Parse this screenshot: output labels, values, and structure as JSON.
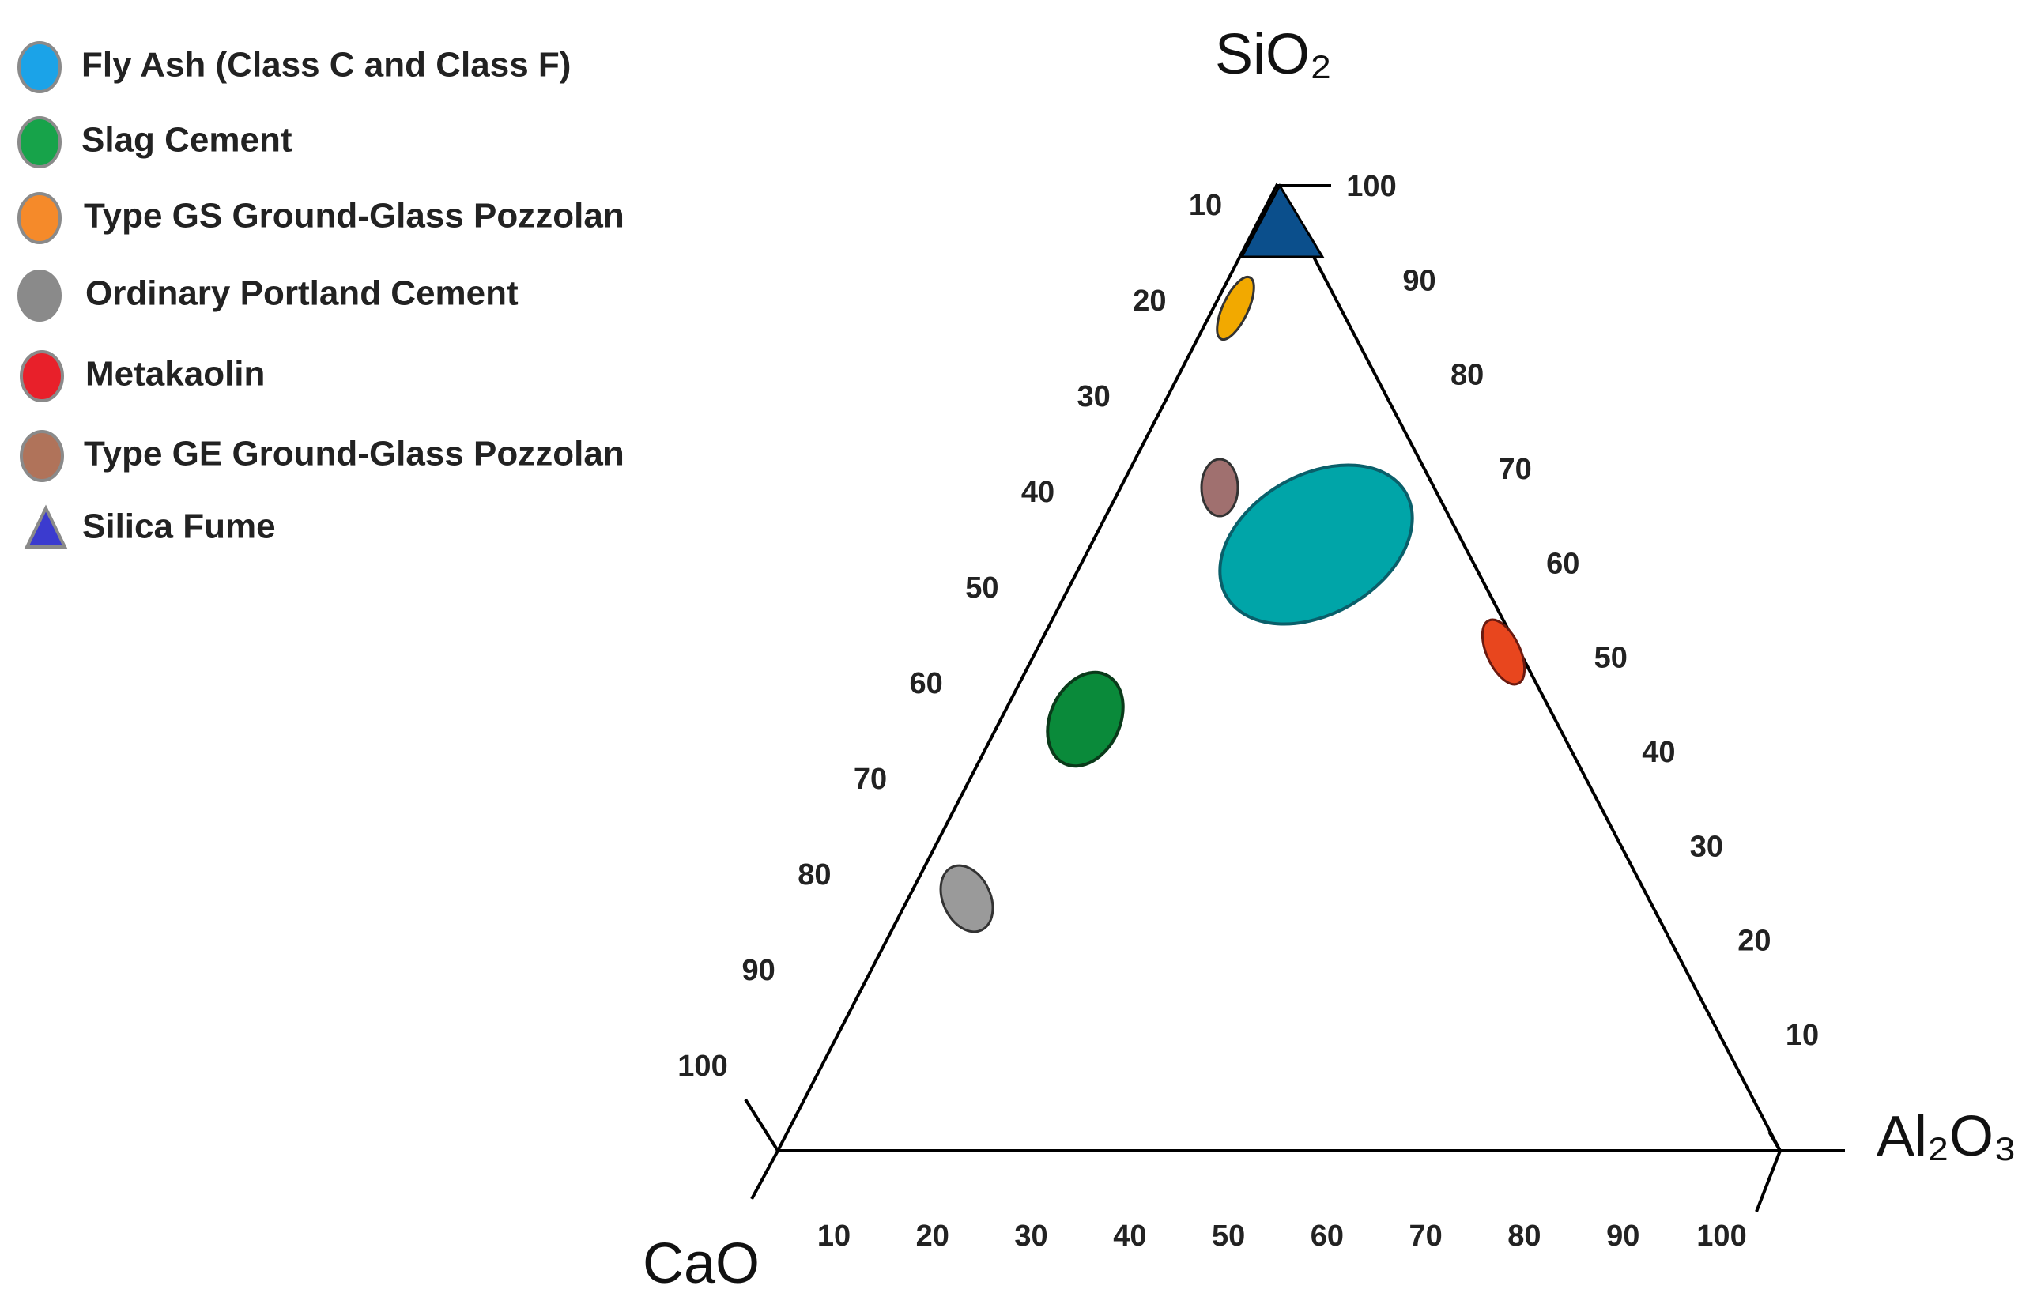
{
  "legend": [
    {
      "label": "Fly Ash (Class C and Class F)"
    },
    {
      "label": "Slag Cement"
    },
    {
      "label": "Type GS Ground-Glass Pozzolan"
    },
    {
      "label": "Ordinary Portland Cement"
    },
    {
      "label": "Metakaolin"
    },
    {
      "label": "Type GE Ground-Glass Pozzolan"
    },
    {
      "label": "Silica Fume"
    }
  ],
  "axes": {
    "top": "SiO₂",
    "right": "Al₂O₃",
    "left": "CaO"
  },
  "ticks": {
    "left": [
      10,
      20,
      30,
      40,
      50,
      60,
      70,
      80,
      90,
      100
    ],
    "right": [
      100,
      90,
      80,
      70,
      60,
      50,
      40,
      30,
      20,
      10
    ],
    "bottom": [
      10,
      20,
      30,
      40,
      50,
      60,
      70,
      80,
      90,
      100
    ]
  }
}
